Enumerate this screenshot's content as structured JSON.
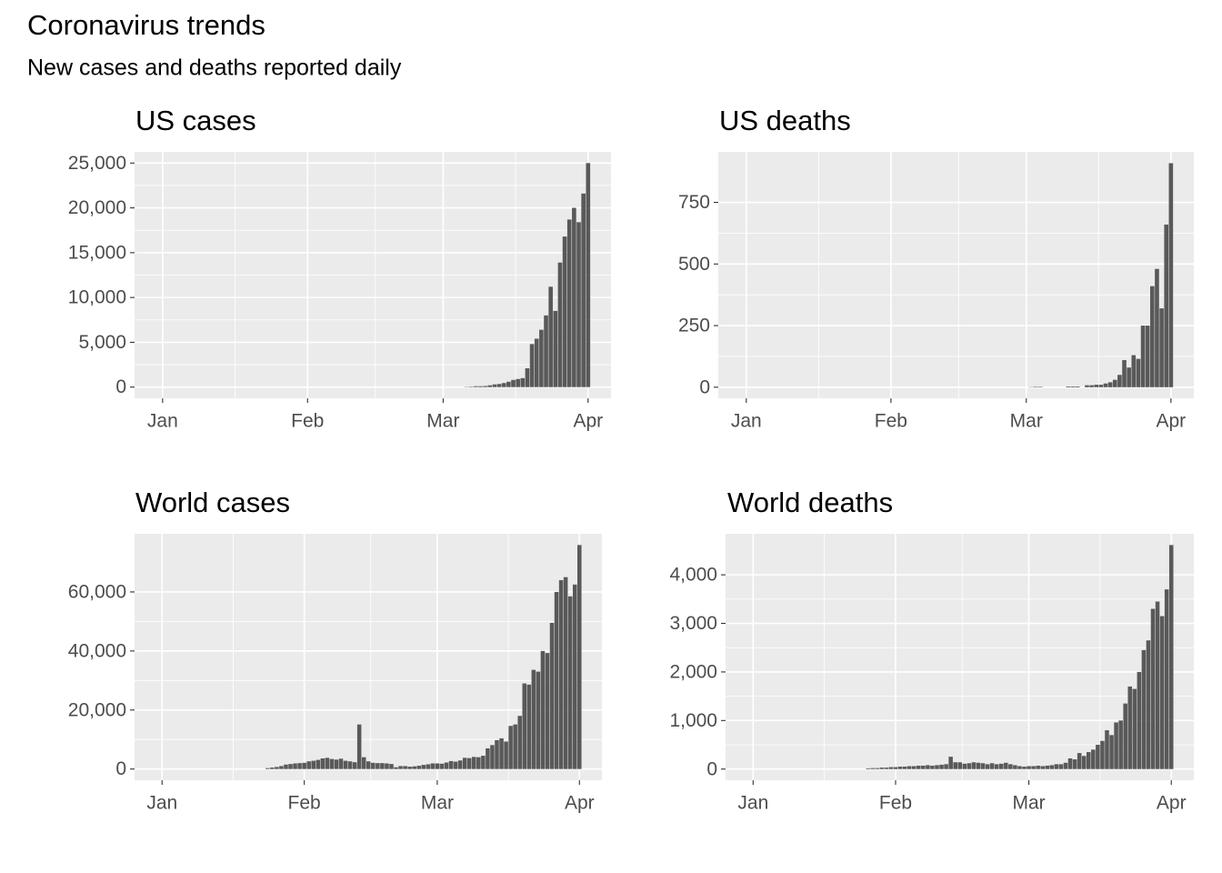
{
  "title": "Coronavirus trends",
  "subtitle": "New cases and deaths reported daily",
  "chart_data": [
    {
      "type": "bar",
      "title": "US cases",
      "color": "#595959",
      "grid": true,
      "categories": [
        "Jan",
        null,
        null,
        null,
        null,
        null,
        null,
        null,
        null,
        null,
        null,
        null,
        null,
        null,
        null,
        null,
        null,
        null,
        null,
        null,
        null,
        null,
        null,
        null,
        null,
        null,
        null,
        null,
        null,
        null,
        null,
        "Feb",
        null,
        null,
        null,
        null,
        null,
        null,
        null,
        null,
        null,
        null,
        null,
        null,
        null,
        null,
        null,
        null,
        null,
        null,
        null,
        null,
        null,
        null,
        null,
        null,
        null,
        null,
        null,
        null,
        "Mar",
        null,
        null,
        null,
        null,
        null,
        null,
        null,
        null,
        null,
        null,
        null,
        null,
        null,
        null,
        null,
        null,
        null,
        null,
        null,
        null,
        null,
        null,
        null,
        null,
        null,
        null,
        null,
        null,
        null,
        null,
        "Apr"
      ],
      "values": [
        0,
        0,
        0,
        0,
        0,
        0,
        0,
        0,
        0,
        0,
        0,
        0,
        0,
        0,
        0,
        0,
        0,
        0,
        0,
        0,
        0,
        0,
        0,
        0,
        0,
        0,
        0,
        0,
        0,
        0,
        0,
        0,
        0,
        0,
        0,
        0,
        0,
        0,
        0,
        0,
        0,
        0,
        0,
        0,
        0,
        0,
        0,
        0,
        0,
        0,
        0,
        0,
        0,
        0,
        0,
        0,
        0,
        0,
        0,
        0,
        0,
        0,
        0,
        0,
        0,
        30,
        50,
        100,
        100,
        120,
        200,
        300,
        350,
        450,
        600,
        800,
        900,
        1000,
        2100,
        4800,
        5400,
        6400,
        8000,
        11200,
        8500,
        13900,
        16800,
        18700,
        20000,
        18400,
        21600,
        25000
      ],
      "ylim": [
        -1250,
        26250
      ],
      "yticks": [
        0,
        {
          "value": 5000,
          "label": "5,000"
        },
        {
          "value": 10000,
          "label": "10,000"
        },
        {
          "value": 15000,
          "label": "15,000"
        },
        {
          "value": 20000,
          "label": "20,000"
        },
        {
          "value": 25000,
          "label": "25,000"
        }
      ]
    },
    {
      "type": "bar",
      "title": "US deaths",
      "color": "#595959",
      "grid": true,
      "categories": [
        "Jan",
        null,
        null,
        null,
        null,
        null,
        null,
        null,
        null,
        null,
        null,
        null,
        null,
        null,
        null,
        null,
        null,
        null,
        null,
        null,
        null,
        null,
        null,
        null,
        null,
        null,
        null,
        null,
        null,
        null,
        null,
        "Feb",
        null,
        null,
        null,
        null,
        null,
        null,
        null,
        null,
        null,
        null,
        null,
        null,
        null,
        null,
        null,
        null,
        null,
        null,
        null,
        null,
        null,
        null,
        null,
        null,
        null,
        null,
        null,
        null,
        "Mar",
        null,
        null,
        null,
        null,
        null,
        null,
        null,
        null,
        null,
        null,
        null,
        null,
        null,
        null,
        null,
        null,
        null,
        null,
        null,
        null,
        null,
        null,
        null,
        null,
        null,
        null,
        null,
        null,
        null,
        null,
        "Apr"
      ],
      "values": [
        0,
        0,
        0,
        0,
        0,
        0,
        0,
        0,
        0,
        0,
        0,
        0,
        0,
        0,
        0,
        0,
        0,
        0,
        0,
        0,
        0,
        0,
        0,
        0,
        0,
        0,
        0,
        0,
        0,
        0,
        0,
        0,
        0,
        0,
        0,
        0,
        0,
        0,
        0,
        0,
        0,
        0,
        0,
        0,
        0,
        0,
        0,
        0,
        0,
        0,
        0,
        0,
        0,
        0,
        0,
        0,
        0,
        0,
        0,
        0,
        0,
        1,
        2,
        2,
        0,
        0,
        0,
        0,
        0,
        3,
        3,
        3,
        0,
        8,
        8,
        10,
        10,
        15,
        20,
        30,
        50,
        110,
        80,
        130,
        115,
        250,
        250,
        410,
        480,
        320,
        660,
        909
      ],
      "ylim": [
        -45,
        955
      ],
      "yticks": [
        0,
        250,
        500,
        750
      ]
    },
    {
      "type": "bar",
      "title": "World cases",
      "color": "#595959",
      "grid": true,
      "categories": [
        "Jan",
        null,
        null,
        null,
        null,
        null,
        null,
        null,
        null,
        null,
        null,
        null,
        null,
        null,
        null,
        null,
        null,
        null,
        null,
        null,
        null,
        null,
        null,
        null,
        null,
        null,
        null,
        null,
        null,
        null,
        null,
        "Feb",
        null,
        null,
        null,
        null,
        null,
        null,
        null,
        null,
        null,
        null,
        null,
        null,
        null,
        null,
        null,
        null,
        null,
        null,
        null,
        null,
        null,
        null,
        null,
        null,
        null,
        null,
        null,
        null,
        "Mar",
        null,
        null,
        null,
        null,
        null,
        null,
        null,
        null,
        null,
        null,
        null,
        null,
        null,
        null,
        null,
        null,
        null,
        null,
        null,
        null,
        null,
        null,
        null,
        null,
        null,
        null,
        null,
        null,
        null,
        null,
        "Apr"
      ],
      "values": [
        0,
        0,
        0,
        0,
        0,
        0,
        0,
        0,
        0,
        0,
        0,
        0,
        0,
        0,
        0,
        0,
        0,
        0,
        0,
        0,
        0,
        0,
        0,
        300,
        500,
        700,
        1000,
        1500,
        1700,
        1900,
        2000,
        2100,
        2600,
        2800,
        3100,
        3600,
        3800,
        3400,
        3200,
        3500,
        2800,
        2600,
        2300,
        15100,
        4000,
        2600,
        2100,
        2000,
        2000,
        1900,
        1700,
        600,
        1000,
        1000,
        800,
        900,
        1100,
        1400,
        1600,
        1900,
        1900,
        1800,
        2200,
        2700,
        2500,
        2900,
        3800,
        3700,
        4100,
        4000,
        4500,
        7000,
        8100,
        9800,
        10400,
        9300,
        14600,
        15100,
        18000,
        29000,
        28600,
        33600,
        33000,
        40000,
        39300,
        49500,
        60000,
        64000,
        65000,
        58500,
        62500,
        75900
      ],
      "ylim": [
        -3800,
        79700
      ],
      "yticks": [
        0,
        {
          "value": 20000,
          "label": "20,000"
        },
        {
          "value": 40000,
          "label": "40,000"
        },
        {
          "value": 60000,
          "label": "60,000"
        }
      ]
    },
    {
      "type": "bar",
      "title": "World deaths",
      "color": "#595959",
      "grid": true,
      "categories": [
        "Jan",
        null,
        null,
        null,
        null,
        null,
        null,
        null,
        null,
        null,
        null,
        null,
        null,
        null,
        null,
        null,
        null,
        null,
        null,
        null,
        null,
        null,
        null,
        null,
        null,
        null,
        null,
        null,
        null,
        null,
        null,
        "Feb",
        null,
        null,
        null,
        null,
        null,
        null,
        null,
        null,
        null,
        null,
        null,
        null,
        null,
        null,
        null,
        null,
        null,
        null,
        null,
        null,
        null,
        null,
        null,
        null,
        null,
        null,
        null,
        null,
        "Mar",
        null,
        null,
        null,
        null,
        null,
        null,
        null,
        null,
        null,
        null,
        null,
        null,
        null,
        null,
        null,
        null,
        null,
        null,
        null,
        null,
        null,
        null,
        null,
        null,
        null,
        null,
        null,
        null,
        null,
        null,
        "Apr"
      ],
      "values": [
        0,
        0,
        0,
        0,
        0,
        0,
        0,
        0,
        0,
        0,
        0,
        0,
        0,
        0,
        0,
        0,
        0,
        0,
        0,
        0,
        0,
        0,
        0,
        0,
        0,
        15,
        20,
        20,
        30,
        30,
        40,
        40,
        50,
        50,
        60,
        60,
        70,
        70,
        80,
        70,
        80,
        90,
        100,
        254,
        140,
        140,
        110,
        120,
        140,
        130,
        120,
        100,
        120,
        100,
        110,
        130,
        100,
        80,
        60,
        50,
        60,
        60,
        70,
        60,
        70,
        80,
        100,
        100,
        130,
        220,
        200,
        330,
        270,
        350,
        400,
        500,
        580,
        800,
        700,
        960,
        1000,
        1350,
        1700,
        1650,
        2000,
        2450,
        2650,
        3300,
        3450,
        3150,
        3700,
        4614
      ],
      "ylim": [
        -230,
        4845
      ],
      "yticks": [
        0,
        {
          "value": 1000,
          "label": "1,000"
        },
        {
          "value": 2000,
          "label": "2,000"
        },
        {
          "value": 3000,
          "label": "3,000"
        },
        {
          "value": 4000,
          "label": "4,000"
        }
      ]
    }
  ]
}
